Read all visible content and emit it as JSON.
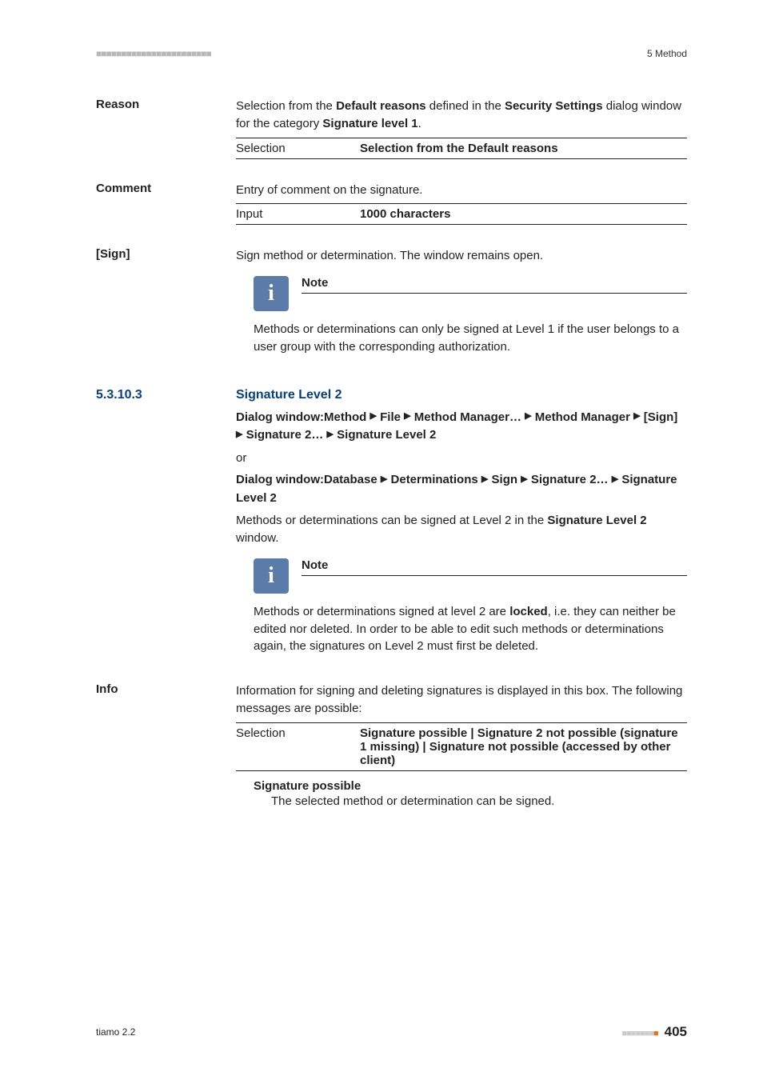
{
  "header": {
    "dashes": "■■■■■■■■■■■■■■■■■■■■■■■",
    "right": "5 Method"
  },
  "reason": {
    "term": "Reason",
    "body_pre": "Selection from the ",
    "body_b1": "Default reasons",
    "body_mid": " defined in the ",
    "body_b2": "Security Settings",
    "body_mid2": " dialog window for the category ",
    "body_b3": "Signature level 1",
    "body_post": ".",
    "spec_label": "Selection",
    "spec_value": "Selection from the Default reasons"
  },
  "comment": {
    "term": "Comment",
    "body": "Entry of comment on the signature.",
    "spec_label": "Input",
    "spec_value": "1000 characters"
  },
  "sign": {
    "term": "[Sign]",
    "body": "Sign method or determination. The window remains open.",
    "note_title": "Note",
    "note_body": "Methods or determinations can only be signed at Level 1 if the user belongs to a user group with the corresponding authorization."
  },
  "subsection": {
    "number": "5.3.10.3",
    "title": "Signature Level 2",
    "dialog1_prefix": "Dialog window:",
    "dialog1_parts": [
      "Method",
      "File",
      "Method Manager…",
      "Method Manager",
      "[Sign]",
      "Signature 2…",
      "Signature Level 2"
    ],
    "or": "or",
    "dialog2_prefix": "Dialog window:",
    "dialog2_parts": [
      "Database",
      "Determinations",
      "Sign",
      "Signature 2…",
      "Signature Level 2"
    ],
    "body_pre": "Methods or determinations can be signed at Level 2 in the ",
    "body_bold": "Signature Level 2",
    "body_post": " window.",
    "note_title": "Note",
    "note_body_pre": "Methods or determinations signed at level 2 are ",
    "note_body_bold": "locked",
    "note_body_post": ", i.e. they can neither be edited nor deleted. In order to be able to edit such methods or determinations again, the signatures on Level 2 must first be deleted."
  },
  "info": {
    "term": "Info",
    "body": "Information for signing and deleting signatures is displayed in this box. The following messages are possible:",
    "spec_label": "Selection",
    "spec_value": "Signature possible | Signature 2 not possible (signature 1 missing) | Signature not possible (accessed by other client)",
    "def_term": "Signature possible",
    "def_body": "The selected method or determination can be signed."
  },
  "footer": {
    "left": "tiamo 2.2",
    "dashes_gray": "■■■■■■■",
    "dashes_accent": "■",
    "page": "405"
  }
}
